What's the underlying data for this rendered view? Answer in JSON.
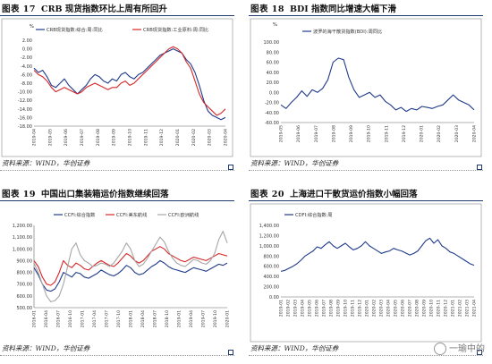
{
  "panels": [
    {
      "fig_label": "图表 17",
      "title": "CRB 现货指数环比上周有所回升",
      "source": "资料来源：WIND，华创证券"
    },
    {
      "fig_label": "图表 18",
      "title": "BDI 指数同比增速大幅下滑",
      "source": "资料来源：WIND，华创证券"
    },
    {
      "fig_label": "图表 19",
      "title": "中国出口集装箱运价指数继续回落",
      "source": "资料来源：WIND，华创证券"
    },
    {
      "fig_label": "图表 20",
      "title": "上海进口干散货运价指数小幅回落",
      "source": "资料来源：WIND，华创证券"
    }
  ],
  "watermark": "一瑜中的",
  "chart_data": [
    {
      "type": "line",
      "ylabel": "%",
      "ylim": [
        -18,
        2
      ],
      "yticks": [
        "2.00",
        "0.00",
        "-2.00",
        "-4.00",
        "-6.00",
        "-8.00",
        "-10.00",
        "-12.00",
        "-14.00",
        "-16.00",
        "-18.00"
      ],
      "x_ticks": [
        "2019-04",
        "2019-05",
        "2019-06",
        "2019-07",
        "2019-08",
        "2019-09",
        "2019-10",
        "2019-11",
        "2019-12",
        "2020-01",
        "2020-02",
        "2020-03",
        "2020-04"
      ],
      "legend_position": "top",
      "series": [
        {
          "name": "CRB现货指数:综合:周:同比",
          "color": "#1f3a8a",
          "values": [
            -4.5,
            -5.5,
            -5.0,
            -6.5,
            -8.5,
            -9.0,
            -8.0,
            -7.0,
            -8.5,
            -9.5,
            -10.5,
            -9.5,
            -8.5,
            -7.0,
            -6.0,
            -6.5,
            -7.5,
            -8.0,
            -7.0,
            -7.5,
            -6.0,
            -5.5,
            -6.5,
            -7.0,
            -6.0,
            -5.5,
            -4.5,
            -3.5,
            -2.5,
            -1.5,
            -1.0,
            -0.5,
            0.0,
            -0.5,
            -1.0,
            -2.5,
            -3.5,
            -5.5,
            -8.5,
            -12.0,
            -14.5,
            -15.5,
            -16.0,
            -16.5,
            -16.0
          ]
        },
        {
          "name": "CRB现货指数:工业原料:周:同比",
          "color": "#d62728",
          "values": [
            -5.0,
            -6.0,
            -6.5,
            -7.5,
            -9.0,
            -10.0,
            -9.5,
            -9.0,
            -9.5,
            -10.0,
            -10.5,
            -10.0,
            -9.0,
            -8.5,
            -8.0,
            -8.5,
            -9.0,
            -9.5,
            -9.0,
            -9.0,
            -8.0,
            -7.5,
            -8.5,
            -8.0,
            -7.0,
            -6.0,
            -5.0,
            -4.0,
            -3.0,
            -2.0,
            -1.0,
            0.0,
            0.5,
            0.0,
            -1.0,
            -3.0,
            -4.5,
            -7.5,
            -10.5,
            -12.5,
            -13.5,
            -14.5,
            -15.5,
            -15.0,
            -14.0
          ]
        }
      ]
    },
    {
      "type": "line",
      "ylabel": "%",
      "ylim": [
        -60,
        100
      ],
      "yticks": [
        "100.00",
        "80.00",
        "60.00",
        "40.00",
        "20.00",
        "0.00",
        "-20.00",
        "-40.00",
        "-60.00"
      ],
      "x_ticks": [
        "2019-05",
        "2019-06",
        "2019-07",
        "2019-08",
        "2019-09",
        "2019-10",
        "2019-11",
        "2019-12",
        "2020-01",
        "2020-02",
        "2020-03",
        "2020-04"
      ],
      "legend_position": "top",
      "series": [
        {
          "name": "波罗的海干散货指数(BDI):周同比",
          "color": "#1f3a8a",
          "values": [
            -25,
            -32,
            -20,
            -10,
            3,
            -8,
            5,
            0,
            8,
            25,
            60,
            68,
            65,
            30,
            5,
            -10,
            -5,
            0,
            -10,
            -5,
            -18,
            -25,
            -35,
            -30,
            -38,
            -32,
            -35,
            -28,
            -30,
            -32,
            -28,
            -25,
            -15,
            -5,
            -15,
            -20,
            -25,
            -35
          ]
        }
      ]
    },
    {
      "type": "line",
      "ylim": [
        500,
        1200
      ],
      "yticks": [
        "1,200.00",
        "1,100.00",
        "1,000.00",
        "900.00",
        "800.00",
        "700.00",
        "600.00",
        "500.00"
      ],
      "x_ticks": [
        "2016-01",
        "2016-04",
        "2016-07",
        "2016-10",
        "2017-01",
        "2017-04",
        "2017-07",
        "2017-10",
        "2018-01",
        "2018-04",
        "2018-07",
        "2018-10",
        "2019-01",
        "2019-04",
        "2019-07",
        "2019-10",
        "2020-01"
      ],
      "legend_position": "top",
      "series": [
        {
          "name": "CCFI:综合指数",
          "color": "#1f3a8a",
          "values": [
            840,
            780,
            700,
            650,
            640,
            660,
            720,
            800,
            780,
            760,
            800,
            790,
            760,
            750,
            770,
            790,
            820,
            800,
            780,
            770,
            790,
            820,
            860,
            840,
            800,
            780,
            790,
            820,
            850,
            870,
            900,
            880,
            850,
            830,
            820,
            810,
            800,
            820,
            840,
            830,
            820,
            810,
            830,
            850,
            870,
            860,
            880
          ]
        },
        {
          "name": "CCFI:美东航线",
          "color": "#d62728",
          "values": [
            900,
            850,
            760,
            700,
            690,
            720,
            800,
            900,
            860,
            840,
            880,
            860,
            830,
            820,
            850,
            880,
            900,
            880,
            860,
            850,
            880,
            920,
            960,
            940,
            900,
            880,
            900,
            940,
            980,
            1000,
            1020,
            1000,
            960,
            940,
            920,
            900,
            890,
            910,
            930,
            920,
            910,
            900,
            920,
            940,
            960,
            950,
            940
          ]
        },
        {
          "name": "CCFI:欧洲航线",
          "color": "#a6a6a6",
          "values": [
            880,
            800,
            700,
            600,
            550,
            560,
            600,
            700,
            850,
            1000,
            1050,
            950,
            900,
            880,
            850,
            860,
            880,
            870,
            850,
            880,
            930,
            980,
            1050,
            1000,
            900,
            850,
            870,
            920,
            980,
            1040,
            1100,
            1060,
            980,
            920,
            880,
            860,
            850,
            880,
            910,
            900,
            880,
            870,
            900,
            960,
            1080,
            1150,
            1050
          ]
        }
      ]
    },
    {
      "type": "line",
      "ylim": [
        0,
        1400
      ],
      "yticks": [
        "1,400.00",
        "1,200.00",
        "1,000.00",
        "800.00",
        "600.00",
        "400.00",
        "200.00",
        "0.00"
      ],
      "x_ticks": [
        "2019-01",
        "2019-02",
        "2019-03",
        "2019-04",
        "2019-05",
        "2019-06",
        "2019-07",
        "2019-08",
        "2019-09",
        "2019-10",
        "2019-11",
        "2019-12",
        "2020-01",
        "2020-02",
        "2020-03",
        "2020-04",
        "2020-05",
        "2020-06",
        "2020-07",
        "2020-08",
        "2020-09",
        "2020-10",
        "2020-11",
        "2020-12",
        "2021-01",
        "2021-02",
        "2021-03",
        "2021-04"
      ],
      "legend_position": "top",
      "series": [
        {
          "name": "CDFI:综合指数:周",
          "color": "#1f3a8a",
          "values": [
            500,
            520,
            560,
            600,
            650,
            720,
            800,
            850,
            900,
            980,
            950,
            1020,
            1080,
            1000,
            950,
            1000,
            1050,
            980,
            920,
            950,
            1000,
            1080,
            1000,
            950,
            900,
            850,
            880,
            900,
            950,
            920,
            900,
            860,
            820,
            850,
            900,
            1000,
            1100,
            1150,
            1050,
            1120,
            1000,
            950,
            880,
            850,
            800,
            750,
            700,
            650,
            620
          ]
        }
      ]
    }
  ]
}
